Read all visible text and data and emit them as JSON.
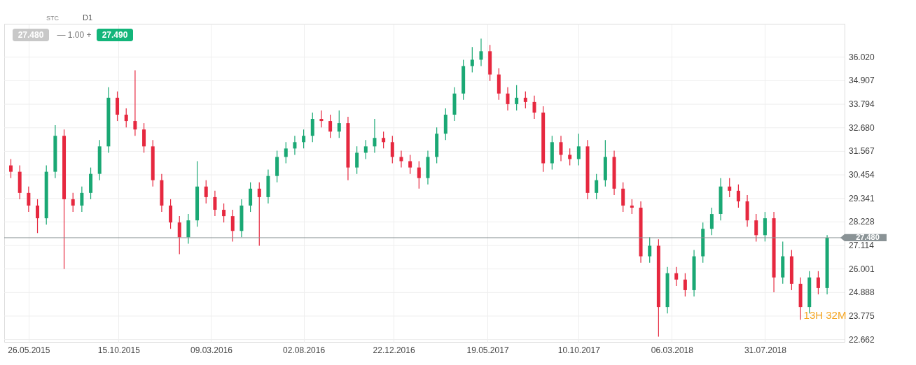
{
  "chart_data": {
    "type": "candlestick",
    "x": [
      "2015-04-28",
      "2015-05-12",
      "2015-05-26",
      "2015-06-09",
      "2015-06-23",
      "2015-07-07",
      "2015-07-21",
      "2015-08-04",
      "2015-08-18",
      "2015-09-01",
      "2015-09-15",
      "2015-09-29",
      "2015-10-13",
      "2015-10-27",
      "2015-11-10",
      "2015-11-24",
      "2015-12-08",
      "2015-12-22",
      "2016-01-05",
      "2016-01-19",
      "2016-02-02",
      "2016-02-16",
      "2016-03-01",
      "2016-03-15",
      "2016-03-29",
      "2016-04-12",
      "2016-04-26",
      "2016-05-10",
      "2016-05-24",
      "2016-06-07",
      "2016-06-21",
      "2016-07-05",
      "2016-07-19",
      "2016-08-02",
      "2016-08-16",
      "2016-08-30",
      "2016-09-13",
      "2016-09-27",
      "2016-10-11",
      "2016-10-25",
      "2016-11-08",
      "2016-11-22",
      "2016-12-06",
      "2016-12-20",
      "2017-01-03",
      "2017-01-17",
      "2017-01-31",
      "2017-02-14",
      "2017-02-28",
      "2017-03-14",
      "2017-03-28",
      "2017-04-11",
      "2017-04-25",
      "2017-05-09",
      "2017-05-23",
      "2017-06-06",
      "2017-06-20",
      "2017-07-04",
      "2017-07-18",
      "2017-08-01",
      "2017-08-15",
      "2017-08-29",
      "2017-09-12",
      "2017-09-26",
      "2017-10-10",
      "2017-10-24",
      "2017-11-07",
      "2017-11-21",
      "2017-12-05",
      "2017-12-19",
      "2018-01-02",
      "2018-01-16",
      "2018-01-30",
      "2018-02-13",
      "2018-02-27",
      "2018-03-13",
      "2018-03-27",
      "2018-04-10",
      "2018-04-24",
      "2018-05-08",
      "2018-05-22",
      "2018-06-05",
      "2018-06-19",
      "2018-07-03",
      "2018-07-17",
      "2018-07-31",
      "2018-08-14",
      "2018-08-28",
      "2018-09-11",
      "2018-09-25",
      "2018-10-09",
      "2018-10-23",
      "2018-11-06"
    ],
    "ohlc": [
      [
        30.9,
        31.2,
        30.3,
        30.6
      ],
      [
        30.6,
        30.9,
        29.3,
        29.6
      ],
      [
        29.6,
        29.9,
        28.7,
        29.0
      ],
      [
        29.0,
        29.3,
        27.7,
        28.4
      ],
      [
        28.4,
        30.9,
        28.1,
        30.6
      ],
      [
        30.6,
        32.8,
        30.3,
        32.3
      ],
      [
        32.3,
        32.6,
        26.0,
        29.3
      ],
      [
        29.3,
        29.6,
        28.7,
        29.0
      ],
      [
        29.0,
        29.9,
        28.7,
        29.6
      ],
      [
        29.6,
        30.8,
        29.3,
        30.5
      ],
      [
        30.5,
        32.1,
        30.2,
        31.8
      ],
      [
        31.8,
        34.6,
        31.5,
        34.1
      ],
      [
        34.1,
        34.4,
        33.0,
        33.3
      ],
      [
        33.3,
        33.6,
        32.7,
        33.0
      ],
      [
        33.0,
        35.4,
        32.3,
        32.6
      ],
      [
        32.6,
        32.9,
        31.5,
        31.8
      ],
      [
        31.8,
        32.1,
        29.9,
        30.2
      ],
      [
        30.2,
        30.5,
        28.7,
        29.0
      ],
      [
        29.0,
        29.3,
        27.9,
        28.2
      ],
      [
        28.2,
        28.5,
        26.7,
        27.5
      ],
      [
        27.5,
        28.6,
        27.2,
        28.3
      ],
      [
        28.3,
        31.1,
        28.0,
        29.9
      ],
      [
        29.9,
        30.2,
        29.1,
        29.4
      ],
      [
        29.4,
        29.7,
        28.5,
        28.8
      ],
      [
        28.8,
        29.1,
        28.2,
        28.5
      ],
      [
        28.5,
        28.8,
        27.3,
        27.8
      ],
      [
        27.8,
        29.3,
        27.5,
        29.0
      ],
      [
        29.0,
        30.1,
        28.7,
        29.8
      ],
      [
        29.8,
        30.1,
        27.1,
        29.4
      ],
      [
        29.4,
        30.7,
        29.1,
        30.4
      ],
      [
        30.4,
        31.6,
        30.1,
        31.3
      ],
      [
        31.3,
        32.0,
        31.0,
        31.7
      ],
      [
        31.7,
        32.3,
        31.4,
        32.0
      ],
      [
        32.0,
        32.6,
        31.7,
        32.3
      ],
      [
        32.3,
        33.4,
        32.0,
        33.1
      ],
      [
        33.1,
        33.5,
        32.7,
        33.0
      ],
      [
        33.0,
        33.3,
        32.2,
        32.5
      ],
      [
        32.5,
        33.5,
        32.2,
        32.9
      ],
      [
        32.9,
        33.2,
        30.2,
        30.8
      ],
      [
        30.8,
        31.8,
        30.5,
        31.5
      ],
      [
        31.5,
        32.1,
        31.2,
        31.8
      ],
      [
        31.8,
        33.1,
        31.5,
        32.2
      ],
      [
        32.2,
        32.5,
        31.7,
        32.0
      ],
      [
        32.0,
        32.3,
        31.0,
        31.3
      ],
      [
        31.3,
        31.6,
        30.8,
        31.1
      ],
      [
        31.1,
        31.4,
        30.5,
        30.8
      ],
      [
        30.8,
        31.1,
        29.8,
        30.3
      ],
      [
        30.3,
        31.6,
        30.0,
        31.3
      ],
      [
        31.3,
        32.7,
        31.0,
        32.4
      ],
      [
        32.4,
        33.6,
        32.1,
        33.3
      ],
      [
        33.3,
        34.6,
        33.0,
        34.3
      ],
      [
        34.3,
        35.9,
        34.0,
        35.6
      ],
      [
        35.6,
        36.5,
        35.3,
        35.9
      ],
      [
        35.9,
        36.9,
        35.6,
        36.3
      ],
      [
        36.3,
        36.6,
        34.9,
        35.2
      ],
      [
        35.2,
        35.5,
        34.0,
        34.3
      ],
      [
        34.3,
        34.6,
        33.5,
        33.8
      ],
      [
        33.8,
        34.7,
        33.5,
        34.1
      ],
      [
        34.1,
        34.4,
        33.6,
        33.9
      ],
      [
        33.9,
        34.2,
        33.1,
        33.4
      ],
      [
        33.4,
        33.7,
        30.6,
        31.0
      ],
      [
        31.0,
        32.3,
        30.7,
        32.0
      ],
      [
        32.0,
        32.3,
        31.1,
        31.4
      ],
      [
        31.4,
        31.7,
        30.9,
        31.2
      ],
      [
        31.2,
        32.4,
        30.9,
        31.8
      ],
      [
        31.8,
        32.1,
        29.3,
        29.6
      ],
      [
        29.6,
        30.5,
        29.3,
        30.2
      ],
      [
        30.2,
        32.1,
        29.9,
        31.3
      ],
      [
        31.3,
        31.6,
        29.5,
        29.8
      ],
      [
        29.8,
        30.1,
        28.7,
        29.0
      ],
      [
        29.0,
        29.3,
        28.6,
        28.9
      ],
      [
        28.9,
        29.2,
        26.3,
        26.6
      ],
      [
        26.6,
        27.5,
        26.3,
        27.1
      ],
      [
        27.1,
        27.4,
        22.8,
        24.2
      ],
      [
        24.2,
        26.1,
        23.9,
        25.8
      ],
      [
        25.8,
        26.1,
        25.2,
        25.5
      ],
      [
        25.5,
        25.8,
        24.7,
        25.0
      ],
      [
        25.0,
        26.9,
        24.7,
        26.6
      ],
      [
        26.6,
        28.2,
        26.3,
        27.9
      ],
      [
        27.9,
        28.9,
        27.6,
        28.6
      ],
      [
        28.6,
        30.3,
        28.3,
        29.9
      ],
      [
        29.9,
        30.3,
        29.4,
        29.7
      ],
      [
        29.7,
        30.0,
        28.9,
        29.2
      ],
      [
        29.2,
        29.5,
        28.0,
        28.3
      ],
      [
        28.3,
        28.6,
        27.3,
        27.6
      ],
      [
        27.6,
        28.7,
        27.3,
        28.4
      ],
      [
        28.4,
        28.7,
        24.9,
        25.6
      ],
      [
        25.6,
        27.3,
        25.3,
        26.6
      ],
      [
        26.6,
        26.9,
        25.0,
        25.3
      ],
      [
        25.3,
        25.6,
        23.6,
        24.2
      ],
      [
        24.2,
        25.9,
        23.9,
        25.6
      ],
      [
        25.6,
        25.9,
        24.8,
        25.1
      ],
      [
        25.1,
        27.6,
        24.8,
        27.48
      ]
    ],
    "colors": [
      "#e6283f",
      "#e6283f",
      "#e6283f",
      "#e6283f",
      "#1aa874",
      "#1aa874",
      "#e6283f",
      "#e6283f",
      "#1aa874",
      "#1aa874",
      "#1aa874",
      "#1aa874",
      "#e6283f",
      "#e6283f",
      "#e6283f",
      "#e6283f",
      "#e6283f",
      "#e6283f",
      "#e6283f",
      "#e6283f",
      "#1aa874",
      "#1aa874",
      "#e6283f",
      "#e6283f",
      "#e6283f",
      "#e6283f",
      "#1aa874",
      "#1aa874",
      "#e6283f",
      "#1aa874",
      "#1aa874",
      "#1aa874",
      "#1aa874",
      "#1aa874",
      "#1aa874",
      "#e6283f",
      "#e6283f",
      "#1aa874",
      "#e6283f",
      "#1aa874",
      "#1aa874",
      "#1aa874",
      "#e6283f",
      "#e6283f",
      "#e6283f",
      "#e6283f",
      "#e6283f",
      "#1aa874",
      "#1aa874",
      "#1aa874",
      "#1aa874",
      "#1aa874",
      "#1aa874",
      "#1aa874",
      "#e6283f",
      "#e6283f",
      "#e6283f",
      "#1aa874",
      "#e6283f",
      "#e6283f",
      "#e6283f",
      "#1aa874",
      "#e6283f",
      "#e6283f",
      "#1aa874",
      "#e6283f",
      "#1aa874",
      "#1aa874",
      "#e6283f",
      "#e6283f",
      "#e6283f",
      "#e6283f",
      "#1aa874",
      "#e6283f",
      "#1aa874",
      "#e6283f",
      "#e6283f",
      "#1aa874",
      "#1aa874",
      "#1aa874",
      "#1aa874",
      "#e6283f",
      "#e6283f",
      "#e6283f",
      "#e6283f",
      "#1aa874",
      "#e6283f",
      "#1aa874",
      "#e6283f",
      "#e6283f",
      "#1aa874",
      "#e6283f",
      "#1aa874"
    ],
    "xlim": [
      "2015-04-23",
      "2018-11-28"
    ],
    "xticks": [
      {
        "value": "2015-05-26",
        "label": "26.05.2015"
      },
      {
        "value": "2015-10-15",
        "label": "15.10.2015"
      },
      {
        "value": "2016-03-09",
        "label": "09.03.2016"
      },
      {
        "value": "2016-08-02",
        "label": "02.08.2016"
      },
      {
        "value": "2016-12-22",
        "label": "22.12.2016"
      },
      {
        "value": "2017-05-19",
        "label": "19.05.2017"
      },
      {
        "value": "2017-10-10",
        "label": "10.10.2017"
      },
      {
        "value": "2018-03-06",
        "label": "06.03.2018"
      },
      {
        "value": "2018-07-31",
        "label": "31.07.2018"
      }
    ],
    "ylim": [
      22.55,
      37.6
    ],
    "yticks": [
      {
        "value": 22.662,
        "label": "22.662"
      },
      {
        "value": 23.775,
        "label": "23.775"
      },
      {
        "value": 24.888,
        "label": "24.888"
      },
      {
        "value": 26.001,
        "label": "26.001"
      },
      {
        "value": 27.114,
        "label": "27.114"
      },
      {
        "value": 28.228,
        "label": "28.228"
      },
      {
        "value": 29.341,
        "label": "29.341"
      },
      {
        "value": 30.454,
        "label": "30.454"
      },
      {
        "value": 31.567,
        "label": "31.567"
      },
      {
        "value": 32.68,
        "label": "32.680"
      },
      {
        "value": 33.794,
        "label": "33.794"
      },
      {
        "value": 34.907,
        "label": "34.907"
      },
      {
        "value": 36.02,
        "label": "36.020"
      }
    ],
    "ref_lines": [
      {
        "axis": "y",
        "value": 27.48,
        "label": "27.480",
        "color": "#8a9396"
      }
    ],
    "grid": true,
    "annotations": [
      "STC",
      "D1",
      "27.480",
      "— 1.00 +",
      "27.490",
      "13H 32M"
    ]
  }
}
